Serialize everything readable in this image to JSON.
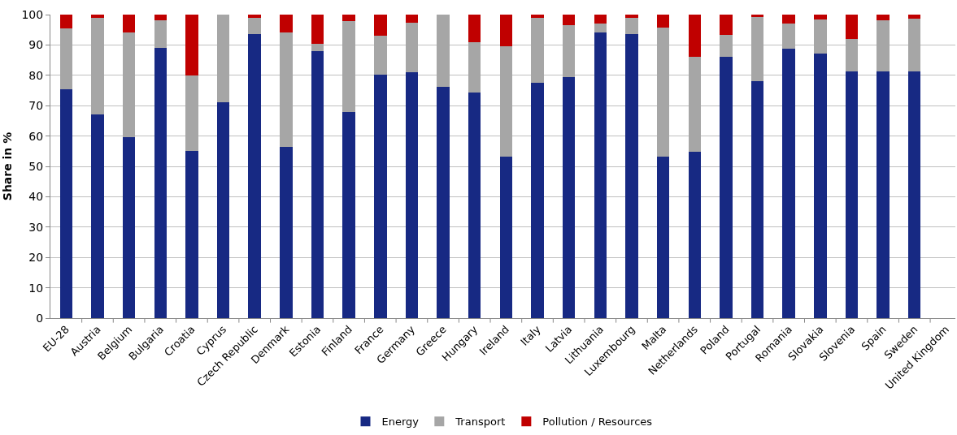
{
  "chart_data": {
    "type": "bar",
    "stacked": true,
    "ylabel": "Share in %",
    "categories": [
      "EU-28",
      "Austria",
      "Belgium",
      "Bulgaria",
      "Croatia",
      "Cyprus",
      "Czech Republic",
      "Denmark",
      "Estonia",
      "Finland",
      "France",
      "Germany",
      "Greece",
      "Hungary",
      "Ireland",
      "Italy",
      "Latvia",
      "Lithuania",
      "Luxembourg",
      "Malta",
      "Netherlands",
      "Poland",
      "Portugal",
      "Romania",
      "Slovakia",
      "Slovenia",
      "Spain",
      "Sweden",
      "United Kingdom"
    ],
    "series": [
      {
        "name": "Energy",
        "color": "#172983",
        "values": [
          75.3,
          67,
          59.5,
          89,
          55,
          71,
          93.5,
          56.5,
          88,
          68,
          80.3,
          81,
          76.3,
          74.3,
          53.3,
          77.5,
          79.5,
          94.2,
          93.5,
          53.3,
          54.8,
          86,
          78,
          88.7,
          87.3,
          81.3,
          81.3,
          81.3,
          null
        ]
      },
      {
        "name": "Transport",
        "color": "#a6a6a6",
        "values": [
          20.2,
          32,
          34.5,
          9,
          25,
          29,
          5.5,
          37.5,
          2.5,
          29.8,
          12.7,
          16.2,
          23.7,
          16.7,
          36.2,
          21.3,
          17,
          2.8,
          5.5,
          42.5,
          31.2,
          7.3,
          21.3,
          8.3,
          11,
          10.7,
          16.7,
          17.3,
          null
        ]
      },
      {
        "name": "Pollution / Resources",
        "color": "#c00000",
        "values": [
          4.5,
          1,
          6,
          2,
          20,
          0,
          1,
          6,
          9.5,
          2.2,
          7,
          2.8,
          0,
          9,
          10.5,
          1.2,
          3.5,
          3,
          1,
          4.2,
          14,
          6.7,
          0.7,
          3,
          1.7,
          8,
          2,
          1.4,
          null
        ]
      }
    ],
    "ylim": [
      0,
      100
    ],
    "yticks": [
      0,
      10,
      20,
      30,
      40,
      50,
      60,
      70,
      80,
      90,
      100
    ],
    "grid": "y",
    "legend": "bottom"
  }
}
